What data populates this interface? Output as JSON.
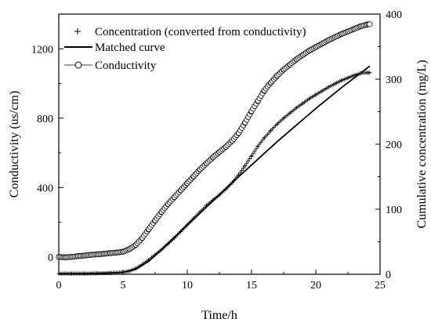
{
  "chart_data": {
    "type": "scatter",
    "xlabel": "Time/h",
    "ylabel_left": "Conductivity (us/cm)",
    "ylabel_right": "Cumulative concentration (mg/L)",
    "xlim": [
      0,
      25
    ],
    "ylim_left": [
      -100,
      1400
    ],
    "ylim_right": [
      0,
      400
    ],
    "x_ticks": [
      "0",
      "5",
      "10",
      "15",
      "20",
      "25"
    ],
    "y_left_ticks": [
      "0",
      "400",
      "800",
      "1200"
    ],
    "y_right_ticks": [
      "0",
      "100",
      "200",
      "300",
      "400"
    ],
    "grid": false,
    "legend_position": "top-left",
    "series": [
      {
        "name": "Concentration (converted from conductivity)",
        "marker": "plus",
        "axis": "right",
        "points": [
          [
            0,
            1
          ],
          [
            1,
            1
          ],
          [
            2,
            1
          ],
          [
            3,
            1.5
          ],
          [
            4,
            2
          ],
          [
            5,
            3
          ],
          [
            5.5,
            5
          ],
          [
            6,
            9
          ],
          [
            6.5,
            15
          ],
          [
            7,
            22
          ],
          [
            7.5,
            30
          ],
          [
            8,
            38
          ],
          [
            8.5,
            47
          ],
          [
            9,
            56
          ],
          [
            9.5,
            66
          ],
          [
            10,
            76
          ],
          [
            10.5,
            86
          ],
          [
            11,
            96
          ],
          [
            11.5,
            106
          ],
          [
            12,
            114
          ],
          [
            12.5,
            122
          ],
          [
            13,
            131
          ],
          [
            13.5,
            141
          ],
          [
            14,
            153
          ],
          [
            14.5,
            167
          ],
          [
            15,
            182
          ],
          [
            15.5,
            197
          ],
          [
            16,
            210
          ],
          [
            16.5,
            221
          ],
          [
            17,
            231
          ],
          [
            17.5,
            240
          ],
          [
            18,
            248
          ],
          [
            18.5,
            256
          ],
          [
            19,
            263
          ],
          [
            19.5,
            270
          ],
          [
            20,
            276
          ],
          [
            20.5,
            282
          ],
          [
            21,
            288
          ],
          [
            21.5,
            293
          ],
          [
            22,
            298
          ],
          [
            22.5,
            302
          ],
          [
            23,
            306
          ],
          [
            23.5,
            309
          ],
          [
            24,
            310
          ],
          [
            24.2,
            310
          ]
        ]
      },
      {
        "name": "Matched curve",
        "marker": "line",
        "axis": "right",
        "points": [
          [
            0,
            1
          ],
          [
            2,
            1
          ],
          [
            4,
            2
          ],
          [
            5,
            3
          ],
          [
            6,
            8
          ],
          [
            7,
            20
          ],
          [
            8,
            38
          ],
          [
            9,
            57
          ],
          [
            10,
            76
          ],
          [
            11,
            94
          ],
          [
            12,
            113
          ],
          [
            13,
            132
          ],
          [
            14,
            150
          ],
          [
            15,
            168
          ],
          [
            16,
            186
          ],
          [
            17,
            204
          ],
          [
            18,
            221
          ],
          [
            19,
            238
          ],
          [
            20,
            255
          ],
          [
            21,
            271
          ],
          [
            22,
            287
          ],
          [
            23,
            302
          ],
          [
            24,
            317
          ],
          [
            24.2,
            320
          ]
        ]
      },
      {
        "name": "Conductivity",
        "marker": "circle",
        "axis": "left",
        "points": [
          [
            0,
            0
          ],
          [
            0.5,
            -2
          ],
          [
            1,
            0
          ],
          [
            1.5,
            5
          ],
          [
            2,
            8
          ],
          [
            2.5,
            12
          ],
          [
            3,
            15
          ],
          [
            3.5,
            18
          ],
          [
            4,
            22
          ],
          [
            4.5,
            25
          ],
          [
            5,
            30
          ],
          [
            5.5,
            45
          ],
          [
            6,
            70
          ],
          [
            6.5,
            110
          ],
          [
            7,
            160
          ],
          [
            7.5,
            210
          ],
          [
            8,
            260
          ],
          [
            8.5,
            305
          ],
          [
            9,
            345
          ],
          [
            9.5,
            385
          ],
          [
            10,
            425
          ],
          [
            10.5,
            465
          ],
          [
            11,
            505
          ],
          [
            11.5,
            540
          ],
          [
            12,
            575
          ],
          [
            12.5,
            605
          ],
          [
            13,
            635
          ],
          [
            13.5,
            670
          ],
          [
            14,
            715
          ],
          [
            14.5,
            775
          ],
          [
            15,
            840
          ],
          [
            15.5,
            900
          ],
          [
            16,
            960
          ],
          [
            16.5,
            1005
          ],
          [
            17,
            1045
          ],
          [
            17.5,
            1080
          ],
          [
            18,
            1110
          ],
          [
            18.5,
            1140
          ],
          [
            19,
            1165
          ],
          [
            19.5,
            1190
          ],
          [
            20,
            1210
          ],
          [
            20.5,
            1230
          ],
          [
            21,
            1250
          ],
          [
            21.5,
            1268
          ],
          [
            22,
            1285
          ],
          [
            22.5,
            1300
          ],
          [
            23,
            1315
          ],
          [
            23.5,
            1330
          ],
          [
            24,
            1340
          ],
          [
            24.2,
            1342
          ]
        ]
      }
    ]
  }
}
